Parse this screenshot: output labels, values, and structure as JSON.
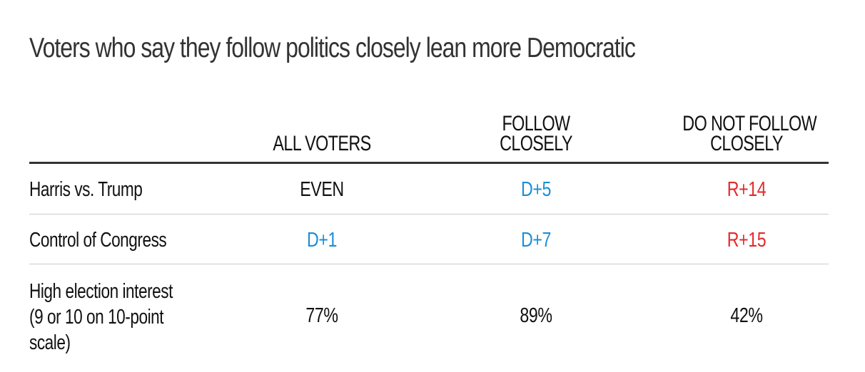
{
  "title": "Voters who say they follow politics closely lean more Democratic",
  "colors": {
    "democratic": "#1a8ed8",
    "republican": "#e3292c",
    "neutral": "#111111"
  },
  "chart_data": {
    "type": "table",
    "title": "Voters who say they follow politics closely lean more Democratic",
    "columns": [
      "ALL VOTERS",
      "FOLLOW\nCLOSELY",
      "DO NOT FOLLOW\nCLOSELY"
    ],
    "rows": [
      {
        "label": "Harris vs. Trump",
        "values": [
          {
            "text": "EVEN",
            "party": "neutral"
          },
          {
            "text": "D+5",
            "party": "democratic"
          },
          {
            "text": "R+14",
            "party": "republican"
          }
        ]
      },
      {
        "label": "Control of Congress",
        "values": [
          {
            "text": "D+1",
            "party": "democratic"
          },
          {
            "text": "D+7",
            "party": "democratic"
          },
          {
            "text": "R+15",
            "party": "republican"
          }
        ]
      },
      {
        "label": "High election interest\n(9 or 10 on 10-point\nscale)",
        "values": [
          {
            "text": "77%",
            "party": "neutral"
          },
          {
            "text": "89%",
            "party": "neutral"
          },
          {
            "text": "42%",
            "party": "neutral"
          }
        ]
      }
    ]
  }
}
